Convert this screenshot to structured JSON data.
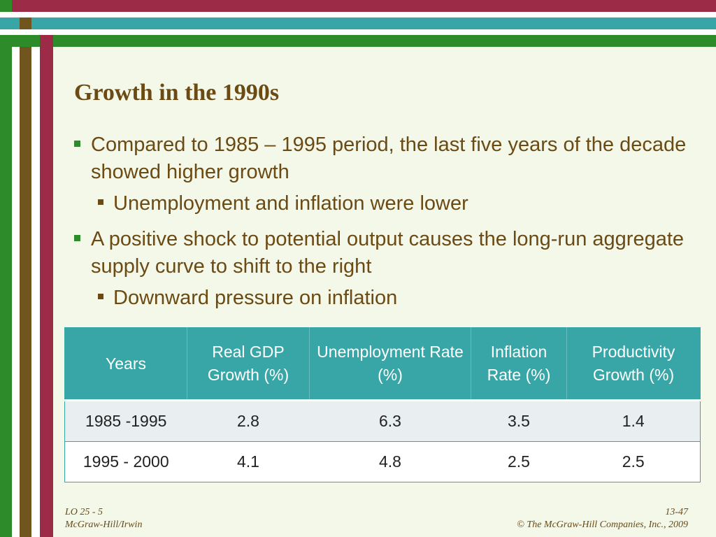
{
  "slide": {
    "title": "Growth in the 1990s",
    "bullets": [
      {
        "text": "Compared to 1985 – 1995 period, the last five years of the decade showed higher growth",
        "sub": "Unemployment and inflation were lower"
      },
      {
        "text": "A positive shock to potential output causes the long-run aggregate supply curve to shift to the right",
        "sub": "Downward pressure on inflation"
      }
    ]
  },
  "table": {
    "headers": [
      "Years",
      "Real GDP Growth (%)",
      "Unemployment Rate (%)",
      "Inflation Rate (%)",
      "Productivity Growth (%)"
    ],
    "rows": [
      [
        "1985 -1995",
        "2.8",
        "6.3",
        "3.5",
        "1.4"
      ],
      [
        "1995 - 2000",
        "4.1",
        "4.8",
        "2.5",
        "2.5"
      ]
    ]
  },
  "footer": {
    "lo": "LO 25 - 5",
    "publisher": "McGraw-Hill/Irwin",
    "page": "13-47",
    "copyright": "© The McGraw-Hill Companies, Inc., 2009"
  },
  "colors": {
    "background": "#f3f8e9",
    "accent_green": "#2e8b2a",
    "accent_brown": "#70551e",
    "accent_red": "#9b2b47",
    "accent_teal": "#38a6a6",
    "text": "#6b4a14"
  }
}
